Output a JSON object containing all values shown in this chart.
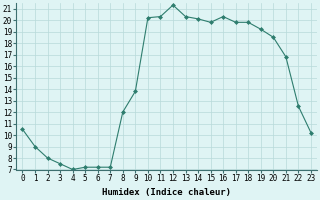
{
  "x": [
    0,
    1,
    2,
    3,
    4,
    5,
    6,
    7,
    8,
    9,
    10,
    11,
    12,
    13,
    14,
    15,
    16,
    17,
    18,
    19,
    20,
    21,
    22,
    23
  ],
  "y": [
    10.5,
    9.0,
    8.0,
    7.5,
    7.0,
    7.2,
    7.2,
    7.2,
    12.0,
    13.8,
    20.2,
    20.3,
    21.3,
    20.3,
    20.1,
    19.8,
    20.3,
    19.8,
    19.8,
    19.2,
    18.5,
    16.8,
    12.5,
    10.2
  ],
  "line_color": "#2e7d6e",
  "marker": "D",
  "markersize": 2.0,
  "linewidth": 0.8,
  "bg_color": "#dff4f4",
  "grid_color": "#b8dada",
  "xlabel": "Humidex (Indice chaleur)",
  "ylim": [
    7,
    21.5
  ],
  "xlim": [
    -0.5,
    23.5
  ],
  "yticks": [
    7,
    8,
    9,
    10,
    11,
    12,
    13,
    14,
    15,
    16,
    17,
    18,
    19,
    20,
    21
  ],
  "xticks": [
    0,
    1,
    2,
    3,
    4,
    5,
    6,
    7,
    8,
    9,
    10,
    11,
    12,
    13,
    14,
    15,
    16,
    17,
    18,
    19,
    20,
    21,
    22,
    23
  ],
  "xlabel_fontsize": 6.5,
  "tick_fontsize": 5.5
}
